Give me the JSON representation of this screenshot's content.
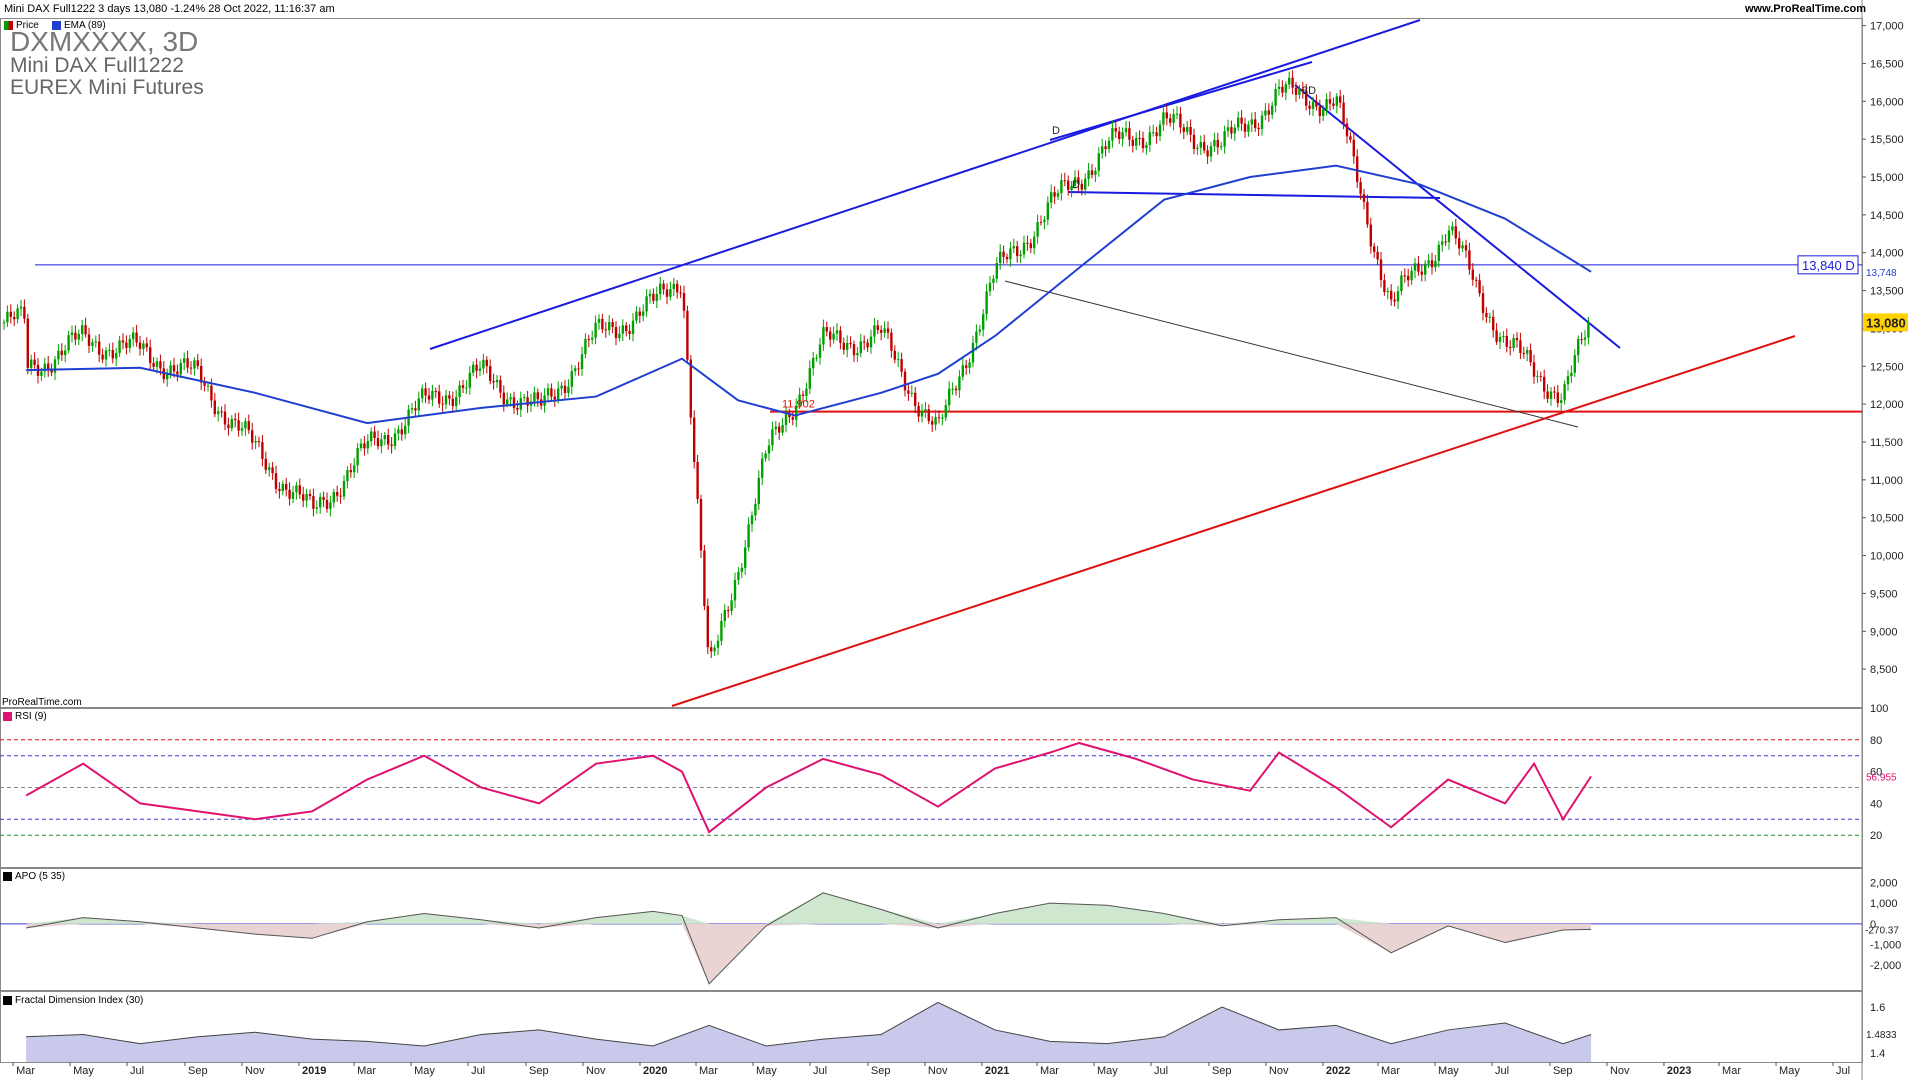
{
  "header": {
    "instrument_line": "Mini DAX Full1222 3 days 13,080 -1.24% 28 Oct 2022, 11:16:37 am",
    "site": "www.ProRealTime.com"
  },
  "title": {
    "symbol": "DXMXXXX, 3D",
    "name": "Mini DAX Full1222",
    "exchange": "EUREX Mini Futures"
  },
  "legend": {
    "price": "Price",
    "ema": "EMA (89)"
  },
  "watermark": "ProRealTime.com",
  "colors": {
    "price_up": "#00a000",
    "price_down": "#c00000",
    "ema": "#1f3fd0",
    "trend_blue": "#1a1ae0",
    "trend_red": "#e01010",
    "rsi": "#e0126f",
    "apo_pos": "#cfe6cf",
    "apo_neg": "#e9d3d3",
    "fdi_fill": "#c9c9ec"
  },
  "chart_data": [
    {
      "type": "line",
      "title": "Mini DAX Full1222 (3D)",
      "series": [
        {
          "name": "Price",
          "x": [
            "2018-03",
            "2018-05",
            "2018-07",
            "2018-09",
            "2018-11",
            "2019-01",
            "2019-03",
            "2019-05",
            "2019-07",
            "2019-09",
            "2019-11",
            "2020-01",
            "2020-02",
            "2020-03",
            "2020-05",
            "2020-07",
            "2020-09",
            "2020-11",
            "2021-01",
            "2021-03",
            "2021-05",
            "2021-07",
            "2021-09",
            "2021-11",
            "2022-01",
            "2022-03",
            "2022-05",
            "2022-07",
            "2022-09",
            "2022-10"
          ],
          "y": [
            12450,
            12850,
            12700,
            12350,
            11400,
            10550,
            11400,
            12000,
            12400,
            11900,
            12900,
            13300,
            13700,
            8400,
            11300,
            12800,
            12900,
            11600,
            13700,
            14600,
            15400,
            15700,
            15400,
            16100,
            16000,
            13300,
            14300,
            12800,
            12100,
            13080
          ]
        },
        {
          "name": "EMA (89)",
          "x": [
            "2018-03",
            "2018-07",
            "2018-11",
            "2019-03",
            "2019-07",
            "2019-11",
            "2020-02",
            "2020-04",
            "2020-06",
            "2020-09",
            "2020-11",
            "2021-01",
            "2021-04",
            "2021-07",
            "2021-10",
            "2022-01",
            "2022-04",
            "2022-07",
            "2022-10"
          ],
          "y": [
            12450,
            12480,
            12150,
            11750,
            11950,
            12100,
            12600,
            12050,
            11850,
            12150,
            12400,
            12900,
            13800,
            14700,
            15000,
            15150,
            14900,
            14450,
            13748
          ]
        }
      ],
      "price_labels": [
        "17,000",
        "16,500",
        "16,000",
        "15,500",
        "15,000",
        "14,500",
        "14,000",
        "13,500",
        "13,000",
        "12,500",
        "12,000",
        "11,500",
        "11,000",
        "10,500",
        "10,000",
        "9,500",
        "9,000",
        "8,500"
      ],
      "ylim": [
        8000,
        17100
      ],
      "horizontal_levels": [
        {
          "value": 13840,
          "label": "13,840 D"
        },
        {
          "value": 11902,
          "label": "11,902"
        }
      ],
      "current_price": "13,080",
      "ema_last": "13,748",
      "annotations": [
        "D",
        "D",
        "3D"
      ]
    },
    {
      "type": "line",
      "title": "RSI (9)",
      "ticks": [
        "100",
        "80",
        "60",
        "40",
        "20"
      ],
      "levels": [
        80,
        70,
        50,
        30,
        20
      ],
      "last_value": "56.955",
      "x": [
        "2018-03",
        "2018-05",
        "2018-07",
        "2018-09",
        "2018-11",
        "2019-01",
        "2019-03",
        "2019-05",
        "2019-07",
        "2019-09",
        "2019-11",
        "2020-01",
        "2020-02",
        "2020-03",
        "2020-05",
        "2020-07",
        "2020-09",
        "2020-11",
        "2021-01",
        "2021-03",
        "2021-04",
        "2021-06",
        "2021-08",
        "2021-10",
        "2021-11",
        "2022-01",
        "2022-03",
        "2022-05",
        "2022-07",
        "2022-08",
        "2022-09",
        "2022-10"
      ],
      "y": [
        45,
        65,
        40,
        35,
        30,
        35,
        55,
        70,
        50,
        40,
        65,
        70,
        60,
        22,
        50,
        68,
        58,
        38,
        62,
        72,
        78,
        68,
        55,
        48,
        72,
        50,
        25,
        55,
        40,
        65,
        30,
        57
      ]
    },
    {
      "type": "area",
      "title": "APO (5 35)",
      "ticks": [
        "2,000",
        "1,000",
        "0",
        "-1,000",
        "-2,000"
      ],
      "last_value": "-270.37",
      "x": [
        "2018-03",
        "2018-05",
        "2018-07",
        "2018-09",
        "2018-11",
        "2019-01",
        "2019-03",
        "2019-05",
        "2019-07",
        "2019-09",
        "2019-11",
        "2020-01",
        "2020-02",
        "2020-03",
        "2020-05",
        "2020-07",
        "2020-09",
        "2020-11",
        "2021-01",
        "2021-03",
        "2021-05",
        "2021-07",
        "2021-09",
        "2021-11",
        "2022-01",
        "2022-03",
        "2022-05",
        "2022-07",
        "2022-09",
        "2022-10"
      ],
      "y": [
        -200,
        300,
        100,
        -200,
        -500,
        -700,
        100,
        500,
        200,
        -200,
        300,
        600,
        400,
        -2900,
        -100,
        1500,
        700,
        -200,
        500,
        1000,
        900,
        500,
        -100,
        200,
        300,
        -1400,
        -100,
        -900,
        -300,
        -270
      ]
    },
    {
      "type": "area",
      "title": "Fractal Dimension Index (30)",
      "ticks": [
        "1.6",
        "1.4"
      ],
      "last_value": "1.4833",
      "x": [
        "2018-03",
        "2018-05",
        "2018-07",
        "2018-09",
        "2018-11",
        "2019-01",
        "2019-03",
        "2019-05",
        "2019-07",
        "2019-09",
        "2019-11",
        "2020-01",
        "2020-03",
        "2020-05",
        "2020-07",
        "2020-09",
        "2020-11",
        "2021-01",
        "2021-03",
        "2021-05",
        "2021-07",
        "2021-09",
        "2021-11",
        "2022-01",
        "2022-03",
        "2022-05",
        "2022-07",
        "2022-09",
        "2022-10"
      ],
      "y": [
        1.47,
        1.48,
        1.44,
        1.47,
        1.49,
        1.46,
        1.45,
        1.43,
        1.48,
        1.5,
        1.46,
        1.43,
        1.52,
        1.43,
        1.46,
        1.48,
        1.62,
        1.5,
        1.45,
        1.44,
        1.47,
        1.6,
        1.5,
        1.52,
        1.44,
        1.5,
        1.53,
        1.44,
        1.48
      ]
    }
  ],
  "x_axis": [
    "Mar",
    "May",
    "Jul",
    "Sep",
    "Nov",
    "2019",
    "Mar",
    "May",
    "Jul",
    "Sep",
    "Nov",
    "2020",
    "Mar",
    "May",
    "Jul",
    "Sep",
    "Nov",
    "2021",
    "Mar",
    "May",
    "Jul",
    "Sep",
    "Nov",
    "2022",
    "Mar",
    "May",
    "Jul",
    "Sep",
    "Nov",
    "2023",
    "Mar",
    "May",
    "Jul"
  ]
}
